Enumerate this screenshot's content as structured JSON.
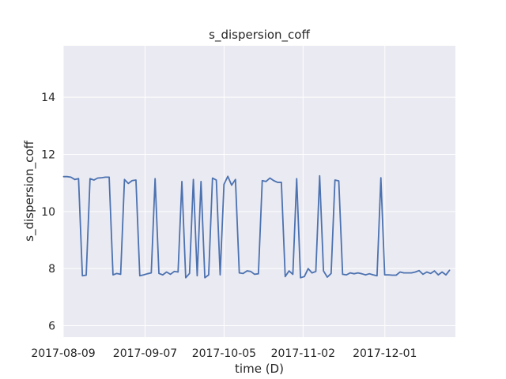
{
  "chart_data": {
    "type": "line",
    "title": "s_dispersion_coff",
    "xlabel": "time (D)",
    "ylabel": "s_dispersion_coff",
    "x_start": "2017-08-09",
    "x_end": "2017-12-24",
    "xlim": [
      "2017-08-09",
      "2017-12-26"
    ],
    "ylim": [
      5.6,
      15.8
    ],
    "x_ticks": [
      "2017-08-09",
      "2017-09-07",
      "2017-10-05",
      "2017-11-02",
      "2017-12-01"
    ],
    "y_ticks": [
      6,
      8,
      10,
      12,
      14
    ],
    "y_tick_labels": [
      "6",
      "8",
      "10",
      "12",
      "14"
    ],
    "grid": true,
    "colors": {
      "background": "#eaeaf2",
      "grid": "#ffffff",
      "line": "#4c72b0",
      "text": "#262626"
    },
    "series": [
      {
        "values": [
          11.22,
          11.22,
          11.2,
          11.12,
          11.15,
          7.75,
          7.77,
          11.15,
          11.1,
          11.17,
          11.18,
          11.2,
          11.2,
          7.78,
          7.83,
          7.8,
          11.12,
          10.98,
          11.08,
          11.1,
          7.75,
          7.78,
          7.82,
          7.85,
          11.15,
          7.83,
          7.78,
          7.88,
          7.8,
          7.9,
          7.88,
          11.05,
          7.68,
          7.83,
          11.12,
          7.75,
          11.05,
          7.68,
          7.78,
          11.17,
          11.1,
          7.78,
          10.95,
          11.23,
          10.92,
          11.12,
          7.85,
          7.83,
          7.92,
          7.9,
          7.8,
          7.82,
          11.08,
          11.05,
          11.17,
          11.08,
          11.02,
          11.02,
          7.72,
          7.92,
          7.8,
          11.15,
          7.68,
          7.72,
          8.0,
          7.85,
          7.9,
          11.25,
          7.92,
          7.7,
          7.83,
          11.1,
          11.07,
          7.8,
          7.78,
          7.85,
          7.82,
          7.85,
          7.82,
          7.78,
          7.82,
          7.78,
          7.75,
          11.18,
          7.78,
          7.78,
          7.77,
          7.77,
          7.88,
          7.85,
          7.85,
          7.85,
          7.88,
          7.93,
          7.8,
          7.88,
          7.83,
          7.92,
          7.78,
          7.88,
          7.78,
          7.95
        ]
      }
    ]
  }
}
